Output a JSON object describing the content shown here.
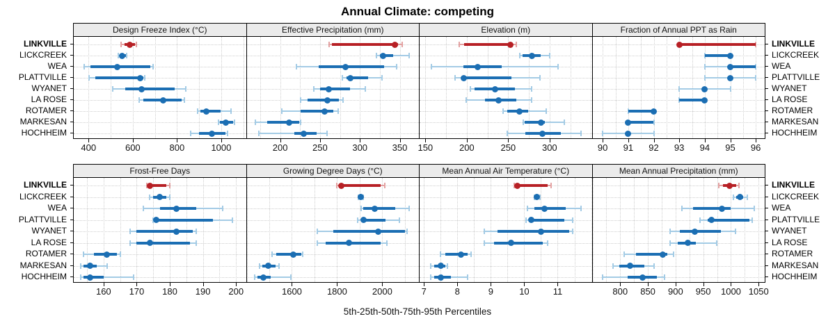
{
  "title": "Annual Climate: competing",
  "caption": "5th-25th-50th-75th-95th Percentiles",
  "highlight_location": "LINKVILLE",
  "percentiles": [
    "5th",
    "25th",
    "50th",
    "75th",
    "95th"
  ],
  "colors": {
    "highlight": "#b72025",
    "highlight_light": "#e3a1a1",
    "normal": "#1b6eb3",
    "normal_light": "#a3cbe5",
    "strip_bg": "#ebebeb",
    "grid": "#cdcdcd",
    "border": "#000000"
  },
  "chart_data": {
    "type": "scatter",
    "subtype": "trellis-percentile-dotplot",
    "title": "Annual Climate: competing",
    "xlabel": "5th-25th-50th-75th-95th Percentiles",
    "grid": "dotted",
    "legend_note": "each row shows [5th, 25th, 50th, 75th, 95th] percentiles; thick bar = 25th-75th, dot = 50th, LINKVILLE highlighted in red",
    "categories": [
      "LINKVILLE",
      "LICKCREEK",
      "WEA",
      "PLATTVILLE",
      "WYANET",
      "LA ROSE",
      "ROTAMER",
      "MARKESAN",
      "HOCHHEIM"
    ],
    "panels": [
      {
        "row": 0,
        "title": "Design Freeze Index (°C)",
        "xlim": [
          333,
          1112
        ],
        "ticks": [
          400,
          600,
          800,
          1000
        ],
        "minor_step": 100,
        "series": [
          {
            "name": "LINKVILLE",
            "values": [
              548,
              562,
              587,
              611,
              616
            ]
          },
          {
            "name": "LICKCREEK",
            "values": [
              534,
              540,
              552,
              568,
              571
            ]
          },
          {
            "name": "WEA",
            "values": [
              379,
              408,
              529,
              678,
              693
            ]
          },
          {
            "name": "PLATTVILLE",
            "values": [
              402,
              431,
              635,
              649,
              654
            ]
          },
          {
            "name": "WYANET",
            "values": [
              508,
              565,
              640,
              790,
              841
            ]
          },
          {
            "name": "LA ROSE",
            "values": [
              629,
              647,
              738,
              822,
              833
            ]
          },
          {
            "name": "ROTAMER",
            "values": [
              894,
              905,
              932,
              997,
              1044
            ]
          },
          {
            "name": "MARKESAN",
            "values": [
              989,
              995,
              1021,
              1053,
              1061
            ]
          },
          {
            "name": "HOCHHEIM",
            "values": [
              863,
              899,
              958,
              1018,
              1030
            ]
          }
        ]
      },
      {
        "row": 0,
        "title": "Effective Precipitation (mm)",
        "xlim": [
          158,
          374
        ],
        "ticks": [
          200,
          250,
          300,
          350
        ],
        "minor_step": 25,
        "series": [
          {
            "name": "LINKVILLE",
            "values": [
              261,
              265,
              344,
              348,
              353
            ]
          },
          {
            "name": "LICKCREEK",
            "values": [
              321,
              325,
              329,
              342,
              362
            ]
          },
          {
            "name": "WEA",
            "values": [
              220,
              248,
              282,
              330,
              346
            ]
          },
          {
            "name": "PLATTVILLE",
            "values": [
              278,
              283,
              288,
              310,
              328
            ]
          },
          {
            "name": "WYANET",
            "values": [
              242,
              250,
              261,
              288,
              307
            ]
          },
          {
            "name": "LA ROSE",
            "values": [
              226,
              234,
              259,
              274,
              279
            ]
          },
          {
            "name": "ROTAMER",
            "values": [
              202,
              226,
              256,
              267,
              273
            ]
          },
          {
            "name": "MARKESAN",
            "values": [
              169,
              184,
              211,
              224,
              226
            ]
          },
          {
            "name": "HOCHHEIM",
            "values": [
              173,
              218,
              230,
              246,
              259
            ]
          }
        ]
      },
      {
        "row": 0,
        "title": "Elevation (m)",
        "xlim": [
          143,
          351
        ],
        "ticks": [
          150,
          200,
          250,
          300
        ],
        "minor_step": 25,
        "series": [
          {
            "name": "LINKVILLE",
            "values": [
              191,
              197,
              253,
              256,
              260
            ]
          },
          {
            "name": "LICKCREEK",
            "values": [
              264,
              267,
              279,
              289,
              300
            ]
          },
          {
            "name": "WEA",
            "values": [
              157,
              196,
              213,
              242,
              310
            ]
          },
          {
            "name": "PLATTVILLE",
            "values": [
              186,
              196,
              196,
              254,
              288
            ]
          },
          {
            "name": "WYANET",
            "values": [
              204,
              209,
              234,
              258,
              278
            ]
          },
          {
            "name": "LA ROSE",
            "values": [
              199,
              222,
              238,
              260,
              278
            ]
          },
          {
            "name": "ROTAMER",
            "values": [
              244,
              249,
              264,
              274,
              296
            ]
          },
          {
            "name": "MARKESAN",
            "values": [
              268,
              270,
              290,
              294,
              318
            ]
          },
          {
            "name": "HOCHHEIM",
            "values": [
              249,
              271,
              291,
              314,
              338
            ]
          }
        ]
      },
      {
        "row": 0,
        "title": "Fraction of Annual PPT as Rain",
        "xlim": [
          89.6,
          96.35
        ],
        "ticks": [
          90,
          91,
          92,
          93,
          94,
          95,
          96
        ],
        "minor_step": 0.5,
        "series": [
          {
            "name": "LINKVILLE",
            "values": [
              93,
              93,
              93,
              96,
              96
            ]
          },
          {
            "name": "LICKCREEK",
            "values": [
              94,
              94,
              95,
              95,
              95
            ]
          },
          {
            "name": "WEA",
            "values": [
              94,
              95,
              95,
              96,
              96
            ]
          },
          {
            "name": "PLATTVILLE",
            "values": [
              94,
              95,
              95,
              95,
              96
            ]
          },
          {
            "name": "WYANET",
            "values": [
              93,
              94,
              94,
              94,
              95
            ]
          },
          {
            "name": "LA ROSE",
            "values": [
              93,
              93,
              94,
              94,
              94
            ]
          },
          {
            "name": "ROTAMER",
            "values": [
              91,
              91,
              92,
              92,
              92
            ]
          },
          {
            "name": "MARKESAN",
            "values": [
              91,
              91,
              91,
              92,
              92
            ]
          },
          {
            "name": "HOCHHEIM",
            "values": [
              90,
              91,
              91,
              91,
              92
            ]
          }
        ]
      },
      {
        "row": 1,
        "title": "Frost-Free Days",
        "xlim": [
          151,
          203
        ],
        "ticks": [
          160,
          170,
          180,
          190,
          200
        ],
        "minor_step": 5,
        "series": [
          {
            "name": "LINKVILLE",
            "values": [
              173,
              174,
              174,
              179,
              180
            ]
          },
          {
            "name": "LICKCREEK",
            "values": [
              174,
              175,
              177,
              179,
              180
            ]
          },
          {
            "name": "WEA",
            "values": [
              172,
              177,
              182,
              188,
              196
            ]
          },
          {
            "name": "PLATTVILLE",
            "values": [
              175,
              176,
              176,
              193,
              199
            ]
          },
          {
            "name": "WYANET",
            "values": [
              168,
              170,
              182,
              187,
              188
            ]
          },
          {
            "name": "LA ROSE",
            "values": [
              168,
              170,
              174,
              186,
              188
            ]
          },
          {
            "name": "ROTAMER",
            "values": [
              154,
              157,
              161,
              164,
              165
            ]
          },
          {
            "name": "MARKESAN",
            "values": [
              153,
              154,
              156,
              158,
              161
            ]
          },
          {
            "name": "HOCHHEIM",
            "values": [
              153,
              154,
              156,
              160,
              169
            ]
          }
        ]
      },
      {
        "row": 1,
        "title": "Growing Degree Days (°C)",
        "xlim": [
          1400,
          2162
        ],
        "ticks": [
          1600,
          1800,
          2000
        ],
        "minor_step": 100,
        "series": [
          {
            "name": "LINKVILLE",
            "values": [
              1800,
              1816,
              1818,
              1994,
              2010
            ]
          },
          {
            "name": "LICKCREEK",
            "values": [
              1893,
              1900,
              1905,
              1911,
              1917
            ]
          },
          {
            "name": "WEA",
            "values": [
              1905,
              1917,
              1966,
              2057,
              2119
            ]
          },
          {
            "name": "PLATTVILLE",
            "values": [
              1890,
              1915,
              1917,
              2015,
              2075
            ]
          },
          {
            "name": "WYANET",
            "values": [
              1714,
              1782,
              1982,
              2100,
              2111
            ]
          },
          {
            "name": "LA ROSE",
            "values": [
              1714,
              1750,
              1854,
              1994,
              2020
            ]
          },
          {
            "name": "ROTAMER",
            "values": [
              1512,
              1532,
              1605,
              1641,
              1647
            ]
          },
          {
            "name": "MARKESAN",
            "values": [
              1457,
              1470,
              1496,
              1527,
              1543
            ]
          },
          {
            "name": "HOCHHEIM",
            "values": [
              1436,
              1449,
              1473,
              1506,
              1595
            ]
          }
        ]
      },
      {
        "row": 1,
        "title": "Mean Annual Air Temperature (°C)",
        "xlim": [
          6.87,
          12.02
        ],
        "ticks": [
          7,
          8,
          9,
          10,
          11
        ],
        "minor_step": 0.5,
        "series": [
          {
            "name": "LINKVILLE",
            "values": [
              9.7,
              9.8,
              9.8,
              10.7,
              10.8
            ]
          },
          {
            "name": "LICKCREEK",
            "values": [
              10.3,
              10.34,
              10.38,
              10.42,
              10.46
            ]
          },
          {
            "name": "WEA",
            "values": [
              10.1,
              10.3,
              10.6,
              11.25,
              11.7
            ]
          },
          {
            "name": "PLATTVILLE",
            "values": [
              10.05,
              10.2,
              10.2,
              11.2,
              11.45
            ]
          },
          {
            "name": "WYANET",
            "values": [
              8.8,
              9.2,
              10.5,
              11.35,
              11.45
            ]
          },
          {
            "name": "LA ROSE",
            "values": [
              8.8,
              9.1,
              9.6,
              10.55,
              10.7
            ]
          },
          {
            "name": "ROTAMER",
            "values": [
              7.5,
              7.65,
              8.1,
              8.3,
              8.4
            ]
          },
          {
            "name": "MARKESAN",
            "values": [
              7.2,
              7.3,
              7.5,
              7.65,
              7.7
            ]
          },
          {
            "name": "HOCHHEIM",
            "values": [
              7.2,
              7.3,
              7.5,
              7.8,
              8.3
            ]
          }
        ]
      },
      {
        "row": 1,
        "title": "Mean Annual Precipitation (mm)",
        "xlim": [
          750,
          1061
        ],
        "ticks": [
          800,
          850,
          900,
          950,
          1000,
          1050
        ],
        "minor_step": 25,
        "series": [
          {
            "name": "LINKVILLE",
            "values": [
              978,
              985,
              997,
              1010,
              1015
            ]
          },
          {
            "name": "LICKCREEK",
            "values": [
              1005,
              1010,
              1016,
              1022,
              1030
            ]
          },
          {
            "name": "WEA",
            "values": [
              912,
              931,
              984,
              1000,
              1042
            ]
          },
          {
            "name": "PLATTVILLE",
            "values": [
              944,
              958,
              965,
              1033,
              1038
            ]
          },
          {
            "name": "WYANET",
            "values": [
              890,
              908,
              935,
              982,
              1008
            ]
          },
          {
            "name": "LA ROSE",
            "values": [
              890,
              904,
              922,
              937,
              974
            ]
          },
          {
            "name": "ROTAMER",
            "values": [
              807,
              829,
              877,
              885,
              896
            ]
          },
          {
            "name": "MARKESAN",
            "values": [
              787,
              799,
              818,
              843,
              861
            ]
          },
          {
            "name": "HOCHHEIM",
            "values": [
              768,
              813,
              841,
              866,
              880
            ]
          }
        ]
      }
    ]
  }
}
